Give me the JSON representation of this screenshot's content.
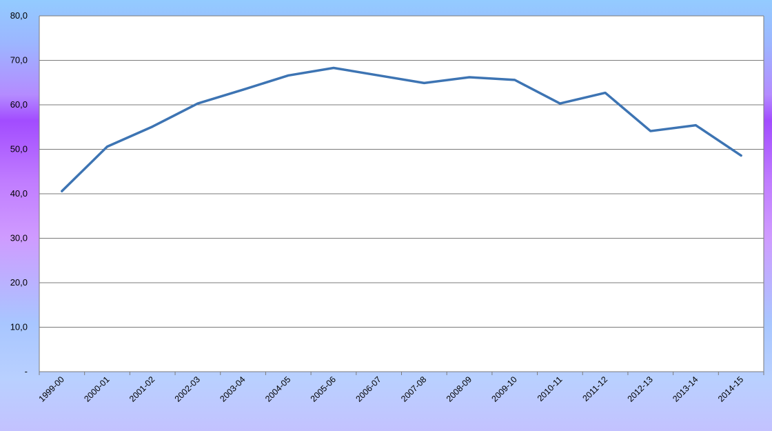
{
  "chart_data": {
    "type": "line",
    "title": "",
    "xlabel": "",
    "ylabel": "",
    "categories": [
      "1999-00",
      "2000-01",
      "2001-02",
      "2002-03",
      "2003-04",
      "2004-05",
      "2005-06",
      "2006-07",
      "2007-08",
      "2008-09",
      "2009-10",
      "2010-11",
      "2011-12",
      "2012-13",
      "2013-14",
      "2014-15"
    ],
    "series": [
      {
        "values": [
          40.6,
          50.6,
          55.1,
          60.3,
          63.4,
          66.6,
          68.3,
          66.6,
          64.9,
          66.2,
          65.6,
          60.3,
          62.7,
          54.1,
          55.4,
          48.6
        ]
      }
    ],
    "ylim": [
      0,
      80
    ],
    "yticks": [
      "-",
      "10,0",
      "20,0",
      "30,0",
      "40,0",
      "50,0",
      "60,0",
      "70,0",
      "80,0"
    ],
    "grid": true,
    "legend": "none"
  },
  "colors": {
    "line": "#3d74b3",
    "grid": "#7a7a7a",
    "plot_bg": "#ffffff",
    "text": "#000000"
  }
}
